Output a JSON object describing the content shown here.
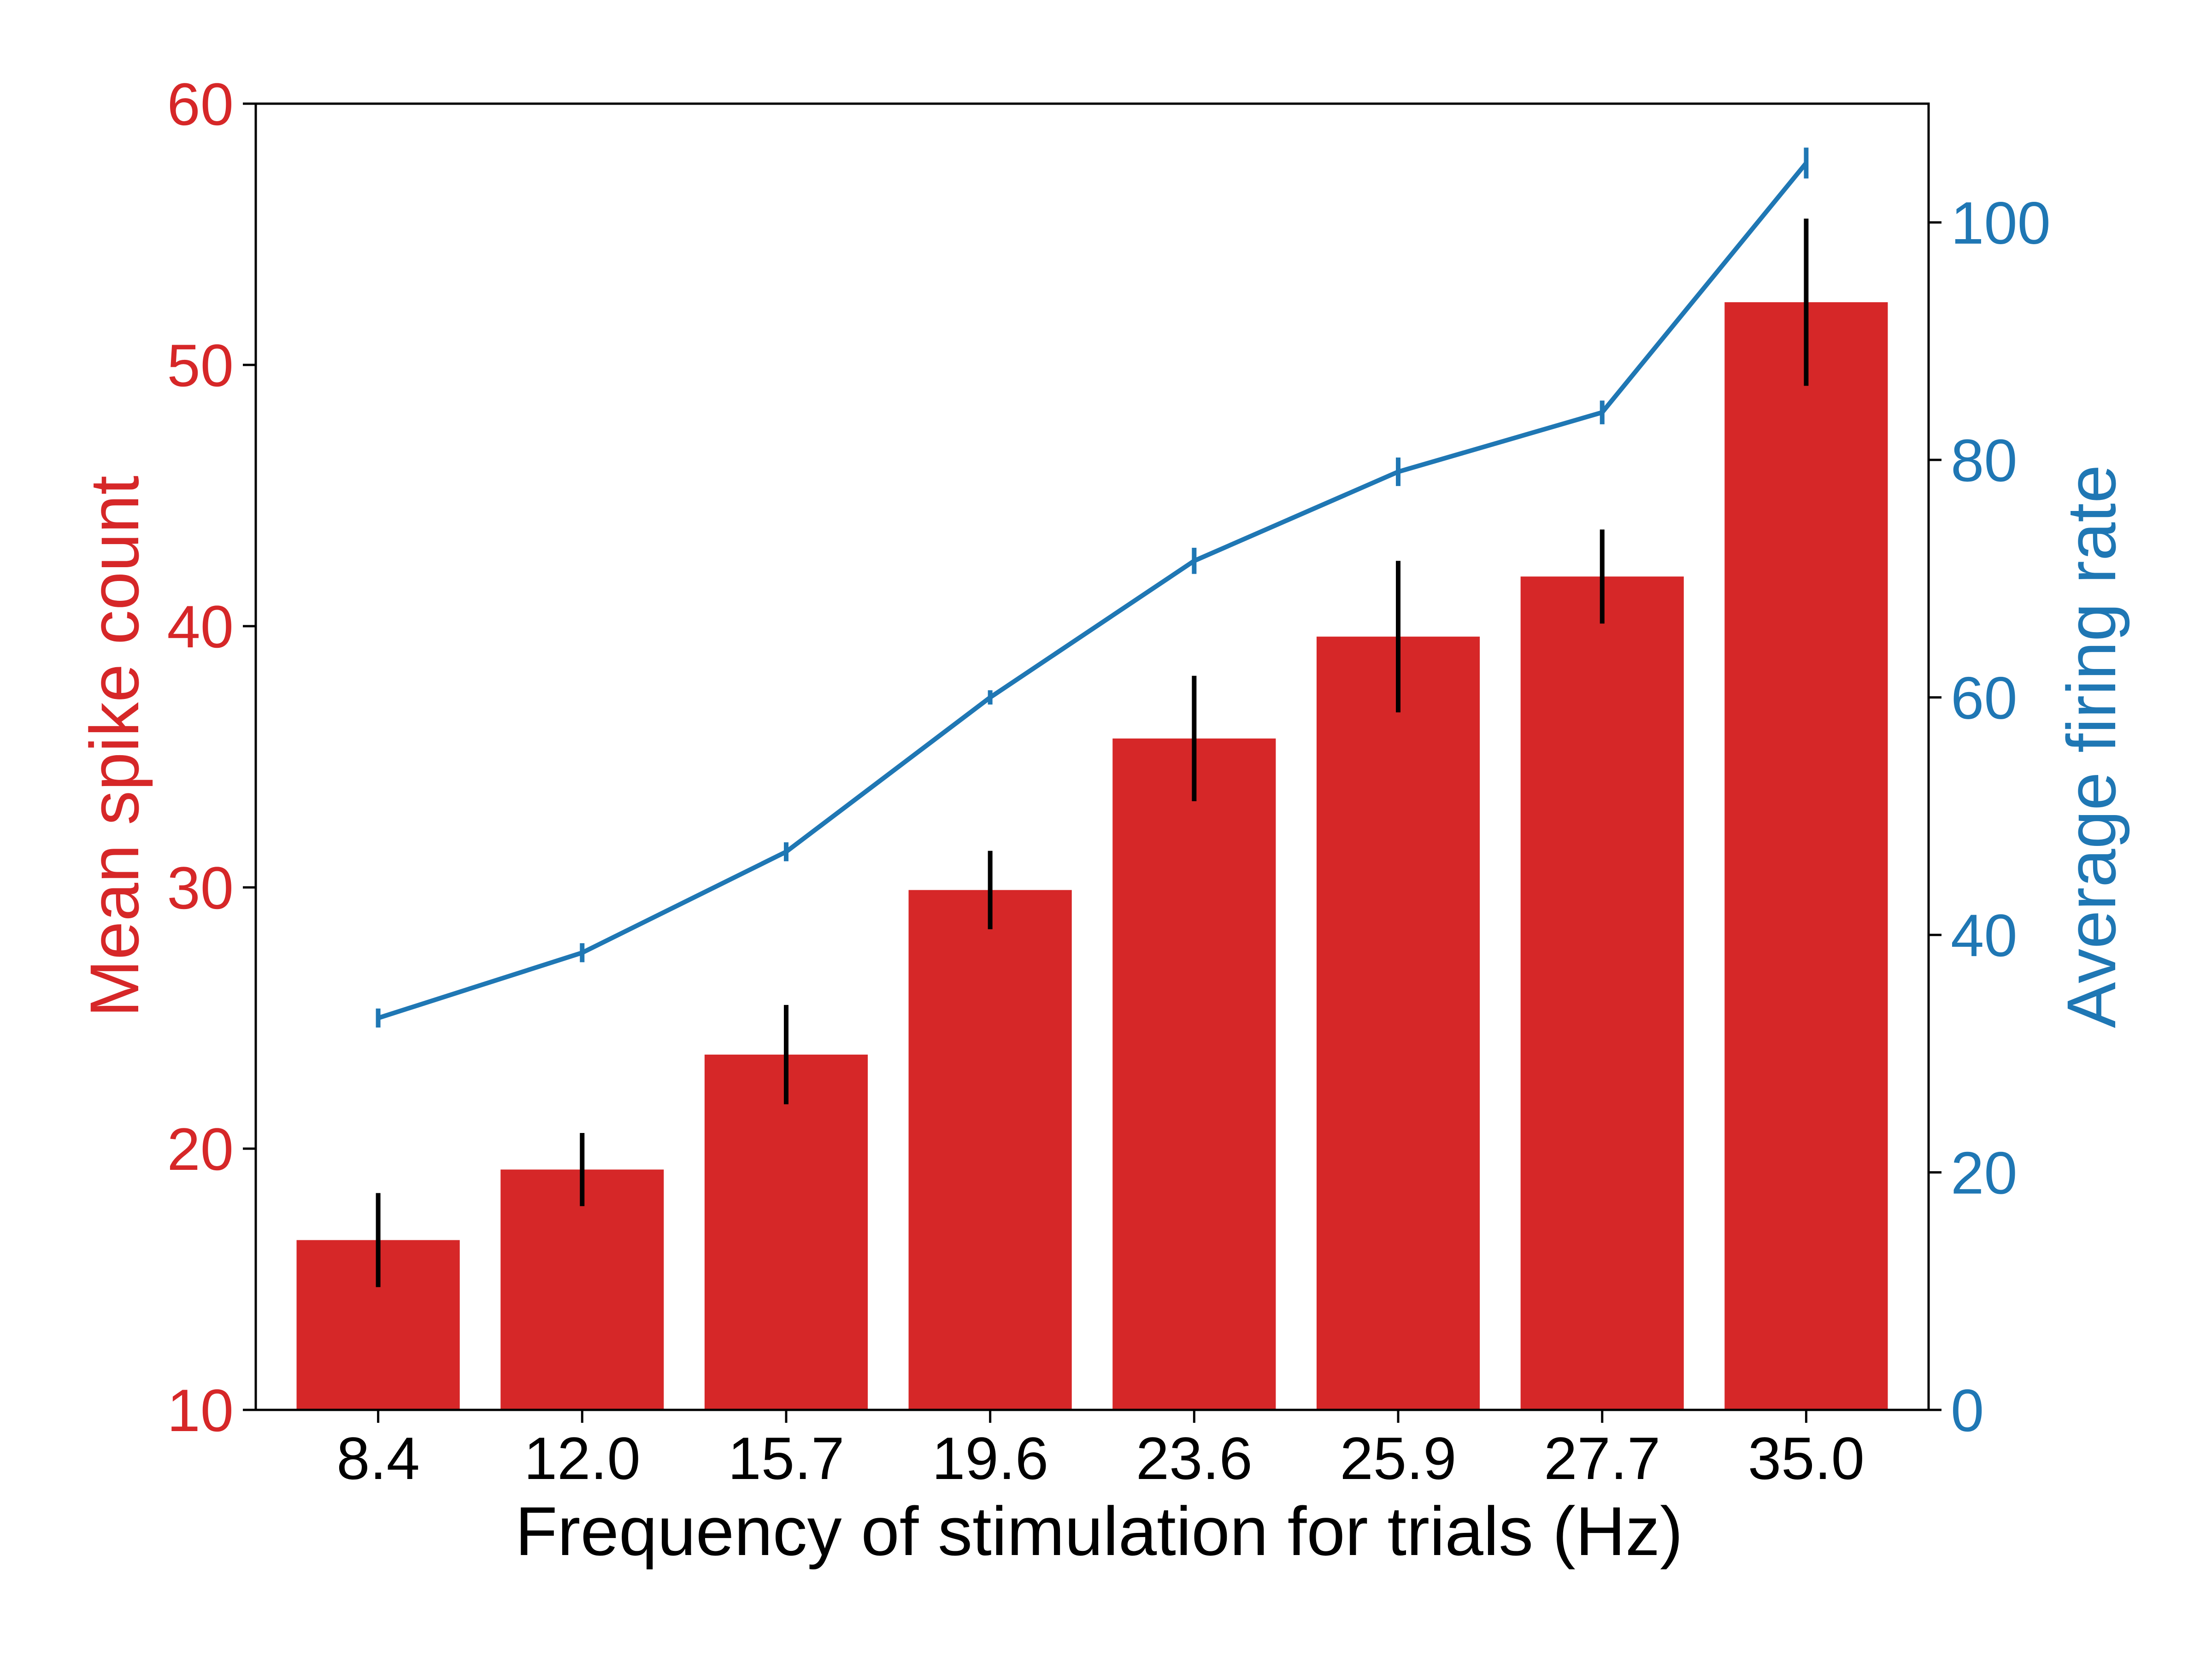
{
  "chart_data": {
    "type": "bar",
    "title": "",
    "xlabel": "Frequency of stimulation for trials (Hz)",
    "ylabel_left": "Mean spike count",
    "ylabel_right": "Average firing rate",
    "categories": [
      "8.4",
      "12.0",
      "15.7",
      "19.6",
      "23.6",
      "25.9",
      "27.7",
      "35.0"
    ],
    "left_axis": {
      "ylim": [
        10,
        60
      ],
      "ticks": [
        "10",
        "20",
        "30",
        "40",
        "50",
        "60"
      ],
      "color": "#d62728"
    },
    "right_axis": {
      "ylim": [
        0,
        110
      ],
      "ticks": [
        "0",
        "20",
        "40",
        "60",
        "80",
        "100"
      ],
      "color": "#1f77b4"
    },
    "series": [
      {
        "type": "bar",
        "axis": "left",
        "values": [
          16.5,
          19.2,
          23.6,
          29.9,
          35.7,
          39.6,
          41.9,
          52.4
        ],
        "errors": [
          1.8,
          1.4,
          1.9,
          1.5,
          2.4,
          2.9,
          1.8,
          3.2
        ],
        "color": "#d62728",
        "error_color": "#000000"
      },
      {
        "type": "line",
        "axis": "right",
        "values": [
          33.0,
          38.5,
          47.0,
          60.0,
          71.5,
          79.0,
          84.0,
          105.0
        ],
        "errors": [
          0.8,
          0.8,
          0.8,
          0.6,
          1.1,
          1.2,
          1.0,
          1.3
        ],
        "color": "#1f77b4"
      }
    ],
    "grid": false,
    "legend": "none"
  }
}
